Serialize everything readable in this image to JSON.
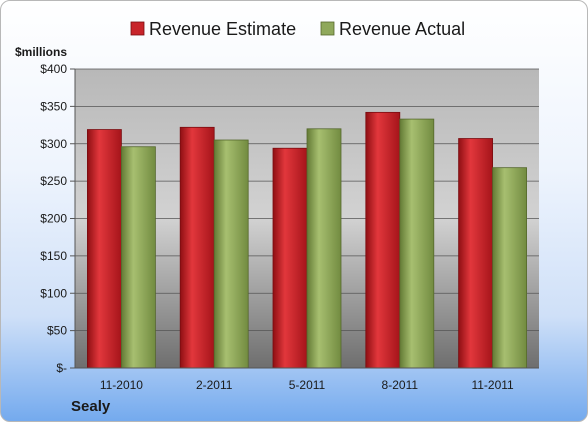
{
  "company": "Sealy",
  "chart_data": {
    "type": "bar",
    "unit_label": "$millions",
    "categories": [
      "11-2010",
      "2-2011",
      "5-2011",
      "8-2011",
      "11-2011"
    ],
    "series": [
      {
        "name": "Revenue Estimate",
        "color": "#c0191f",
        "values": [
          319,
          322,
          294,
          342,
          307
        ]
      },
      {
        "name": "Revenue Actual",
        "color": "#8aa455",
        "values": [
          296,
          305,
          320,
          333,
          268
        ]
      }
    ],
    "ylim": [
      0,
      400
    ],
    "yticks": [
      0,
      50,
      100,
      150,
      200,
      250,
      300,
      350,
      400
    ],
    "ytick_labels": [
      "$-",
      "$50",
      "$100",
      "$150",
      "$200",
      "$250",
      "$300",
      "$350",
      "$400"
    ],
    "grid": true,
    "legend": "top"
  }
}
